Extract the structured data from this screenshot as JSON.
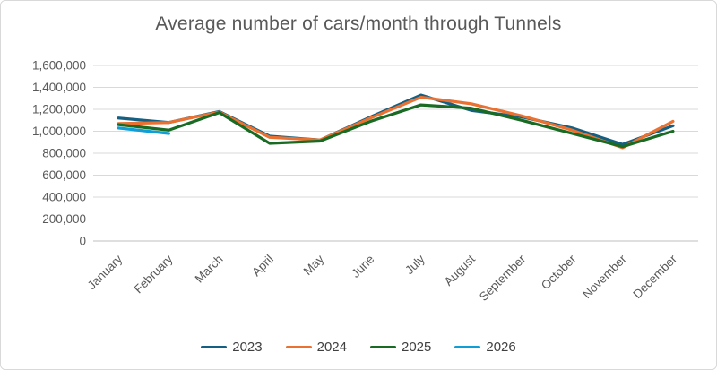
{
  "title": "Average number of cars/month through Tunnels",
  "chart_data": {
    "type": "line",
    "title": "Average number of cars/month through Tunnels",
    "categories": [
      "January",
      "February",
      "March",
      "April",
      "May",
      "June",
      "July",
      "August",
      "September",
      "October",
      "November",
      "December"
    ],
    "series": [
      {
        "name": "2023",
        "color": "#156082",
        "values": [
          1120000,
          1080000,
          1180000,
          955000,
          920000,
          1130000,
          1330000,
          1190000,
          1130000,
          1030000,
          880000,
          1050000
        ]
      },
      {
        "name": "2024",
        "color": "#E97132",
        "values": [
          1070000,
          1080000,
          1175000,
          945000,
          920000,
          1120000,
          1310000,
          1250000,
          1140000,
          1010000,
          850000,
          1090000
        ]
      },
      {
        "name": "2025",
        "color": "#196B24",
        "values": [
          1060000,
          1010000,
          1170000,
          890000,
          910000,
          1090000,
          1240000,
          1210000,
          1100000,
          980000,
          860000,
          1000000
        ]
      },
      {
        "name": "2026",
        "color": "#0F9ED5",
        "values": [
          1030000,
          980000,
          null,
          null,
          null,
          null,
          null,
          null,
          null,
          null,
          null,
          null
        ]
      }
    ],
    "xlabel": "",
    "ylabel": "",
    "ylim": [
      0,
      1600000
    ],
    "ytick_step": 200000,
    "ytick_labels": [
      "0",
      "200,000",
      "400,000",
      "600,000",
      "800,000",
      "1,000,000",
      "1,200,000",
      "1,400,000",
      "1,600,000"
    ],
    "grid": "horizontal",
    "legend_position": "bottom"
  },
  "colors": {
    "gridline": "#D9D9D9",
    "axis_line": "#BFBFBF",
    "axis_text": "#595959",
    "title_text": "#595959",
    "legend_text": "#404040",
    "background": "#FFFFFF"
  }
}
